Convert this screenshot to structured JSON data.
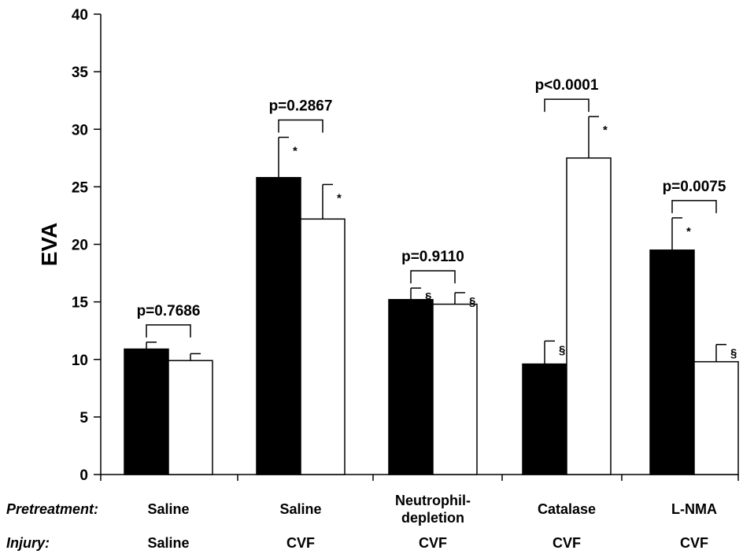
{
  "chart_data": {
    "type": "bar",
    "ylabel": "EVA",
    "xlabel": "",
    "ylim": [
      0,
      40
    ],
    "yticks": [
      0,
      5,
      10,
      15,
      20,
      25,
      30,
      35,
      40
    ],
    "grid": false,
    "legend": "none",
    "row_headers": {
      "pretreatment": "Pretreatment:",
      "injury": "Injury:"
    },
    "groups": [
      {
        "pretreatment": [
          "Saline"
        ],
        "injury": "Saline",
        "p_value": "p=0.7686",
        "bars": [
          {
            "fill": "black",
            "value": 10.9,
            "error": 0.6,
            "marker": ""
          },
          {
            "fill": "white",
            "value": 9.9,
            "error": 0.6,
            "marker": ""
          }
        ]
      },
      {
        "pretreatment": [
          "Saline"
        ],
        "injury": "CVF",
        "p_value": "p=0.2867",
        "bars": [
          {
            "fill": "black",
            "value": 25.8,
            "error": 3.5,
            "marker": "*"
          },
          {
            "fill": "white",
            "value": 22.2,
            "error": 3.0,
            "marker": "*"
          }
        ]
      },
      {
        "pretreatment": [
          "Neutrophil-",
          "depletion"
        ],
        "injury": "CVF",
        "p_value": "p=0.9110",
        "bars": [
          {
            "fill": "black",
            "value": 15.2,
            "error": 1.0,
            "marker": "§"
          },
          {
            "fill": "white",
            "value": 14.8,
            "error": 1.0,
            "marker": "§"
          }
        ]
      },
      {
        "pretreatment": [
          "Catalase"
        ],
        "injury": "CVF",
        "p_value": "p<0.0001",
        "bars": [
          {
            "fill": "black",
            "value": 9.6,
            "error": 2.0,
            "marker": "§"
          },
          {
            "fill": "white",
            "value": 27.5,
            "error": 3.6,
            "marker": "*"
          }
        ]
      },
      {
        "pretreatment": [
          "L-NMA"
        ],
        "injury": "CVF",
        "p_value": "p=0.0075",
        "bars": [
          {
            "fill": "black",
            "value": 19.5,
            "error": 2.8,
            "marker": "*"
          },
          {
            "fill": "white",
            "value": 9.8,
            "error": 1.5,
            "marker": "§"
          }
        ]
      }
    ],
    "colors": {
      "black_bar": "#000000",
      "white_bar": "#ffffff",
      "stroke": "#000000"
    }
  }
}
